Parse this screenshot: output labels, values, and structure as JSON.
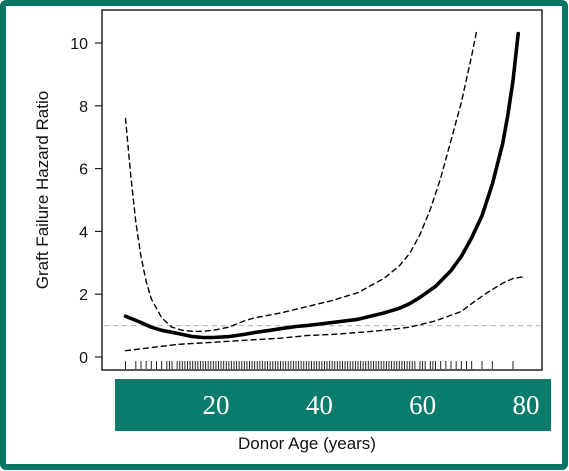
{
  "chart_data": {
    "type": "line",
    "ylabel": "Graft Failure Hazard Ratio",
    "xlabel": "Donor Age (years)",
    "xlim": [
      0,
      85
    ],
    "ylim": [
      0,
      10
    ],
    "y_ticks": [
      "0",
      "2",
      "4",
      "6",
      "8",
      "10"
    ],
    "x_ticks": [
      "20",
      "40",
      "60",
      "80"
    ],
    "x_tick_values": [
      20,
      40,
      60,
      80
    ],
    "reference_line": {
      "y": 1,
      "style": "dashed",
      "color": "#bdbdbd"
    },
    "series": [
      {
        "role": "estimate",
        "style": "solid-thick",
        "x": [
          5,
          8,
          10,
          12,
          15,
          18,
          20,
          22,
          25,
          28,
          30,
          33,
          35,
          38,
          40,
          45,
          50,
          55,
          58,
          60,
          62,
          65,
          68,
          70,
          72,
          74,
          76,
          78,
          79,
          80,
          81
        ],
        "y": [
          1.3,
          1.1,
          0.95,
          0.85,
          0.75,
          0.65,
          0.62,
          0.62,
          0.65,
          0.72,
          0.78,
          0.85,
          0.9,
          0.97,
          1.0,
          1.1,
          1.2,
          1.4,
          1.55,
          1.7,
          1.9,
          2.25,
          2.75,
          3.2,
          3.8,
          4.5,
          5.5,
          6.8,
          7.7,
          8.8,
          10.3
        ]
      },
      {
        "role": "upper-bound",
        "style": "dashed",
        "x": [
          5,
          6,
          7,
          8,
          9,
          10,
          12,
          14,
          16,
          18,
          20,
          22,
          25,
          28,
          30,
          35,
          40,
          45,
          50,
          55,
          58,
          60,
          62,
          64,
          66,
          68,
          70,
          72,
          73
        ],
        "y": [
          7.6,
          5.8,
          4.3,
          3.2,
          2.4,
          1.85,
          1.25,
          0.95,
          0.85,
          0.82,
          0.82,
          0.85,
          0.95,
          1.15,
          1.25,
          1.4,
          1.6,
          1.8,
          2.05,
          2.5,
          2.9,
          3.3,
          3.9,
          4.7,
          5.7,
          6.9,
          8.1,
          9.6,
          10.4
        ]
      },
      {
        "role": "lower-bound",
        "style": "dashed",
        "x": [
          5,
          10,
          15,
          20,
          25,
          30,
          35,
          40,
          45,
          50,
          55,
          60,
          65,
          70,
          72,
          75,
          78,
          80,
          82
        ],
        "y": [
          0.2,
          0.3,
          0.4,
          0.45,
          0.5,
          0.55,
          0.6,
          0.68,
          0.72,
          0.78,
          0.85,
          0.95,
          1.15,
          1.45,
          1.7,
          2.05,
          2.35,
          2.5,
          2.55
        ]
      }
    ],
    "rug_x": [
      5,
      7,
      8,
      9,
      10,
      11,
      12,
      13,
      13.5,
      14,
      15,
      15.5,
      16,
      16.5,
      17,
      17.5,
      18,
      18.5,
      19,
      19.5,
      20,
      20.5,
      21,
      21.5,
      22,
      22.5,
      23,
      23.5,
      24,
      24.5,
      25,
      25.5,
      26,
      26.5,
      27,
      27.5,
      28,
      28.5,
      29,
      29.5,
      30,
      30.5,
      31,
      31.5,
      32,
      32.5,
      33,
      33.5,
      34,
      34.5,
      35,
      35.5,
      36,
      36.5,
      37,
      37.5,
      38,
      38.5,
      39,
      39.5,
      40,
      40.5,
      41,
      41.5,
      42,
      42.5,
      43,
      43.5,
      44,
      44.5,
      45,
      45.5,
      46,
      46.5,
      47,
      47.5,
      48,
      48.5,
      49,
      49.5,
      50,
      50.5,
      51,
      51.5,
      52,
      52.5,
      53,
      53.5,
      54,
      54.5,
      55,
      55.5,
      56,
      56.5,
      57,
      57.5,
      58,
      58.5,
      59,
      59.5,
      60,
      60.5,
      61,
      62,
      62.5,
      63,
      64,
      64.5,
      65,
      66,
      67,
      68,
      69,
      70,
      71,
      72,
      74,
      76,
      80
    ],
    "grid": false,
    "colors": {
      "frame": "#087565",
      "band": "#0a7c6c",
      "line": "#000000"
    }
  }
}
